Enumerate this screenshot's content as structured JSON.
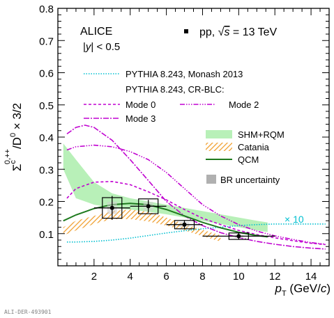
{
  "chart_data": {
    "type": "line",
    "experiment": "ALICE",
    "rapidity_label": "|y| < 0.5",
    "system_label": "pp, √s = 13 TeV",
    "xlabel": "p_T (GeV/c)",
    "ylabel": "Σc0,++/D0 × 3/2",
    "xlim": [
      0,
      15
    ],
    "ylim": [
      0,
      0.8
    ],
    "x_ticks": [
      2,
      4,
      6,
      8,
      10,
      12,
      14
    ],
    "y_ticks": [
      0.1,
      0.2,
      0.3,
      0.4,
      0.5,
      0.6,
      0.7,
      0.8
    ],
    "colors": {
      "data": "#000000",
      "monash": "#00bfd0",
      "cr_blc": "#c000d0",
      "shm": "#b8f0b8",
      "catania": "#f0a030",
      "qcm": "#1e7a1e",
      "br_box": "#b0b0b0"
    },
    "legend": {
      "monash": "PYTHIA 8.243, Monash 2013",
      "crblc_header": "PYTHIA 8.243, CR-BLC:",
      "mode0": "Mode 0",
      "mode2": "Mode 2",
      "mode3": "Mode 3",
      "shm": "SHM+RQM",
      "catania": "Catania",
      "qcm": "QCM",
      "br": "BR uncertainty"
    },
    "scale_label": "× 10",
    "data_points": [
      {
        "x": 3,
        "y": 0.18,
        "xlow": 2,
        "xhigh": 4,
        "stat": 0.037,
        "syst": 0.032
      },
      {
        "x": 5,
        "y": 0.185,
        "xlow": 4,
        "xhigh": 6,
        "stat": 0.02,
        "syst": 0.023
      },
      {
        "x": 7,
        "y": 0.128,
        "xlow": 6,
        "xhigh": 8,
        "stat": 0.013,
        "syst": 0.013
      },
      {
        "x": 10,
        "y": 0.092,
        "xlow": 8,
        "xhigh": 12,
        "stat": 0.01,
        "syst": 0.01
      }
    ],
    "series": [
      {
        "key": "monash",
        "name": "PYTHIA 8.243, Monash 2013",
        "x": [
          0.5,
          1,
          2,
          3,
          4,
          5,
          6,
          7,
          8,
          9,
          10,
          11,
          12,
          13,
          14,
          14.8
        ],
        "y": [
          0.074,
          0.074,
          0.076,
          0.08,
          0.086,
          0.094,
          0.102,
          0.109,
          0.115,
          0.12,
          0.125,
          0.128,
          0.13,
          0.13,
          0.13,
          0.13
        ]
      },
      {
        "key": "mode0",
        "name": "Mode 0",
        "x": [
          0.5,
          1,
          2,
          3,
          4,
          5,
          6,
          7,
          8,
          9,
          10,
          11,
          12,
          13,
          14,
          14.8
        ],
        "y": [
          0.21,
          0.24,
          0.26,
          0.262,
          0.252,
          0.23,
          0.205,
          0.175,
          0.148,
          0.128,
          0.11,
          0.097,
          0.087,
          0.078,
          0.07,
          0.066
        ]
      },
      {
        "key": "mode2",
        "name": "Mode 2",
        "x": [
          0.5,
          1,
          2,
          3,
          4,
          5,
          6,
          7,
          8,
          9,
          10,
          11,
          12,
          13,
          14,
          14.8
        ],
        "y": [
          0.36,
          0.37,
          0.375,
          0.37,
          0.355,
          0.33,
          0.29,
          0.24,
          0.19,
          0.155,
          0.128,
          0.108,
          0.093,
          0.082,
          0.072,
          0.067
        ]
      },
      {
        "key": "mode3",
        "name": "Mode 3",
        "x": [
          0.5,
          1,
          1.5,
          2,
          3,
          4,
          5,
          6,
          7,
          8,
          9,
          10,
          11,
          12,
          13,
          14,
          14.8
        ],
        "y": [
          0.41,
          0.43,
          0.437,
          0.43,
          0.39,
          0.33,
          0.265,
          0.2,
          0.155,
          0.125,
          0.103,
          0.088,
          0.076,
          0.067,
          0.06,
          0.055,
          0.052
        ]
      },
      {
        "key": "qcm",
        "name": "QCM",
        "x": [
          0.3,
          1,
          2,
          3,
          4,
          5,
          6,
          7,
          8,
          9,
          10,
          11,
          11.6
        ],
        "y": [
          0.14,
          0.158,
          0.178,
          0.19,
          0.194,
          0.19,
          0.175,
          0.155,
          0.135,
          0.118,
          0.104,
          0.094,
          0.09
        ]
      }
    ],
    "bands": [
      {
        "key": "shm",
        "name": "SHM+RQM",
        "x": [
          0.3,
          1,
          2,
          3,
          4,
          5,
          6,
          7,
          8,
          9,
          10,
          11,
          11.6
        ],
        "low": [
          0.3,
          0.21,
          0.19,
          0.18,
          0.175,
          0.168,
          0.16,
          0.15,
          0.14,
          0.13,
          0.12,
          0.11,
          0.105
        ],
        "high": [
          0.38,
          0.33,
          0.26,
          0.225,
          0.21,
          0.2,
          0.19,
          0.18,
          0.17,
          0.16,
          0.15,
          0.14,
          0.135
        ]
      },
      {
        "key": "catania",
        "name": "Catania",
        "x": [
          0.3,
          1,
          2,
          3,
          4,
          5,
          6,
          7,
          8,
          9
        ],
        "low": [
          0.095,
          0.11,
          0.13,
          0.145,
          0.145,
          0.138,
          0.125,
          0.11,
          0.092,
          0.075
        ],
        "high": [
          0.12,
          0.14,
          0.155,
          0.17,
          0.175,
          0.168,
          0.15,
          0.13,
          0.112,
          0.095
        ]
      }
    ]
  },
  "footer_id": "ALI-DER-493901"
}
